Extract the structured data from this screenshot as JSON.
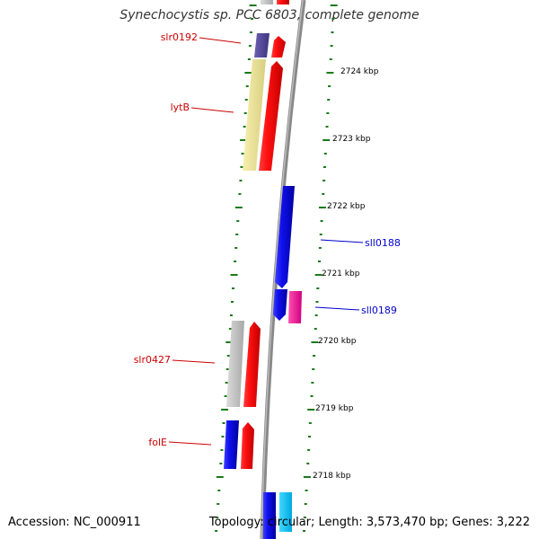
{
  "title": "Synechocystis sp. PCC 6803, complete genome",
  "footer": {
    "accession": "Accession: NC_000911",
    "summary": "Topology: circular; Length: 3,573,470 bp; Genes: 3,222"
  },
  "colors": {
    "forward_gene": "#ff1a1a",
    "reverse_gene": "#1010ee",
    "backbone": "#888888",
    "ticks": "#1a7a1a",
    "label_forward": "#cc0000",
    "label_reverse": "#0000cc"
  },
  "ticks": [
    "2724 kbp",
    "2723 kbp",
    "2722 kbp",
    "2721 kbp",
    "2720 kbp",
    "2719 kbp",
    "2718 kbp"
  ],
  "gene_labels": [
    {
      "name": "slr0192",
      "strand": "forward"
    },
    {
      "name": "lytB",
      "strand": "forward"
    },
    {
      "name": "sll0188",
      "strand": "reverse"
    },
    {
      "name": "sll0189",
      "strand": "reverse"
    },
    {
      "name": "slr0427",
      "strand": "forward"
    },
    {
      "name": "folE",
      "strand": "forward"
    }
  ]
}
